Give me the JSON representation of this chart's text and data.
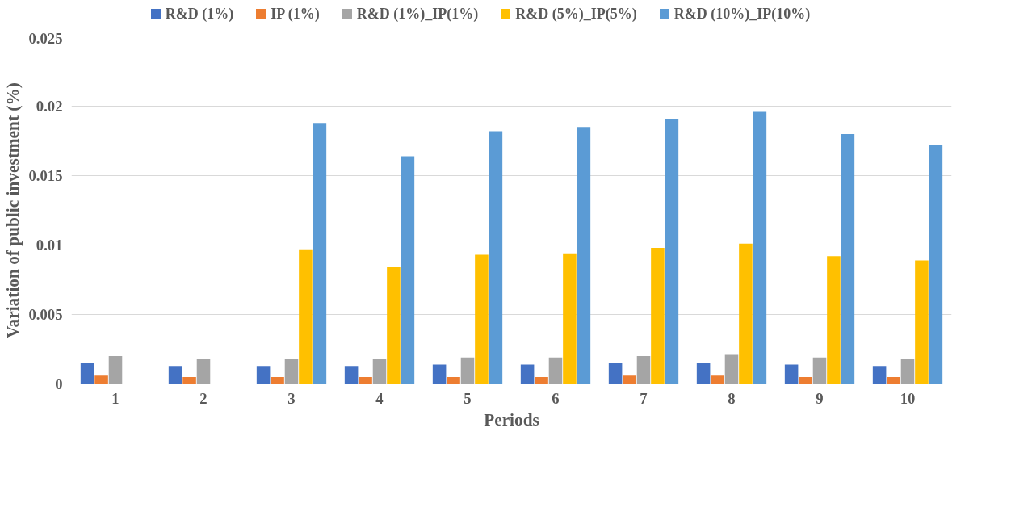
{
  "chart_data": {
    "type": "bar",
    "xlabel": "Periods",
    "ylabel": "Variation of public investment (%)",
    "categories": [
      "1",
      "2",
      "3",
      "4",
      "5",
      "6",
      "7",
      "8",
      "9",
      "10"
    ],
    "series": [
      {
        "name": "R&D (1%)",
        "color": "#4472c4",
        "values": [
          0.0015,
          0.0013,
          0.0013,
          0.0013,
          0.0014,
          0.0014,
          0.0015,
          0.0015,
          0.0014,
          0.0013
        ]
      },
      {
        "name": "IP (1%)",
        "color": "#ed7d31",
        "values": [
          0.0006,
          0.0005,
          0.0005,
          0.0005,
          0.0005,
          0.0005,
          0.0006,
          0.0006,
          0.0005,
          0.0005
        ]
      },
      {
        "name": "R&D (1%)_IP(1%)",
        "color": "#a5a5a5",
        "values": [
          0.002,
          0.0018,
          0.0018,
          0.0018,
          0.0019,
          0.0019,
          0.002,
          0.0021,
          0.0019,
          0.0018
        ]
      },
      {
        "name": "R&D (5%)_IP(5%)",
        "color": "#ffc000",
        "values": [
          null,
          null,
          0.0097,
          0.0084,
          0.0093,
          0.0094,
          0.0098,
          0.0101,
          0.0092,
          0.0089
        ]
      },
      {
        "name": "R&D (10%)_IP(10%)",
        "color": "#5b9bd5",
        "values": [
          null,
          null,
          0.0188,
          0.0164,
          0.0182,
          0.0185,
          0.0191,
          0.0196,
          0.018,
          0.0172
        ]
      }
    ],
    "ylim": [
      0,
      0.025
    ],
    "yticks": [
      0,
      0.005,
      0.01,
      0.015,
      0.02,
      0.025
    ],
    "grid": "y",
    "legend": "top"
  }
}
